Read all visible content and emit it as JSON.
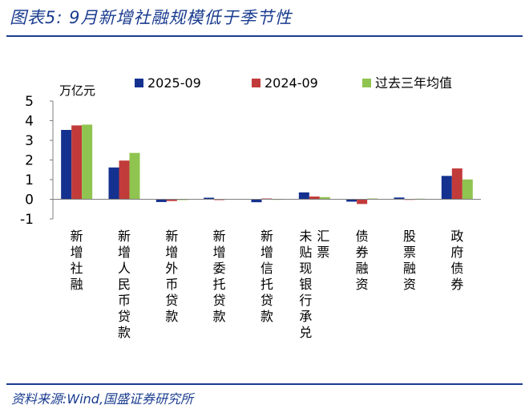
{
  "figure_title": "图表5:  9月新增社融规模低于季节性",
  "source": "资料来源:Wind,国盛证券研究所",
  "colors": {
    "accent": "#1a3c8f",
    "series1": "#14318f",
    "series2": "#c23b3b",
    "series3": "#90c450"
  },
  "chart_data": {
    "type": "bar",
    "ylabel": "万亿元",
    "ylim": [
      -1,
      5
    ],
    "yticks": [
      -1,
      0,
      1,
      2,
      3,
      4,
      5
    ],
    "categories": [
      "新增社融",
      "新增人民币贷款",
      "新增外币贷款",
      "新增委托贷款",
      "新增信托贷款",
      "未贴现银行承兑汇票",
      "债券融资",
      "股票融资",
      "政府债券"
    ],
    "category_label_columns": [
      [
        "新增社融"
      ],
      [
        "新增人民币贷款"
      ],
      [
        "新增外币贷款"
      ],
      [
        "新增委托贷款"
      ],
      [
        "新增信托贷款"
      ],
      [
        "汇票",
        "未贴现银行承兑"
      ],
      [
        "债券融资"
      ],
      [
        "股票融资"
      ],
      [
        "政府债券"
      ]
    ],
    "series": [
      {
        "name": "2025-09",
        "values": [
          3.53,
          1.62,
          -0.14,
          0.08,
          -0.15,
          0.35,
          -0.12,
          0.09,
          1.19
        ]
      },
      {
        "name": "2024-09",
        "values": [
          3.76,
          1.97,
          -0.09,
          -0.02,
          0.04,
          0.14,
          -0.24,
          0.01,
          1.57
        ]
      },
      {
        "name": "过去三年均值",
        "values": [
          3.8,
          2.36,
          -0.04,
          0.02,
          0.01,
          0.11,
          0.04,
          0.03,
          1.01
        ]
      }
    ]
  }
}
